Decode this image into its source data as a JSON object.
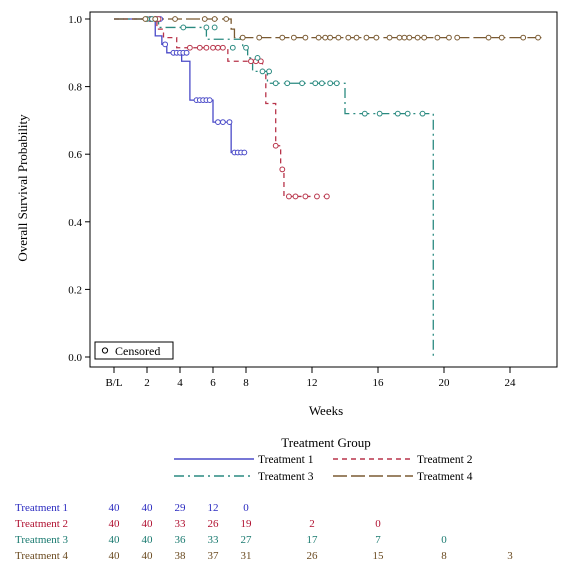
{
  "chart_data": {
    "type": "line",
    "subtype": "kaplan-meier",
    "xlabel": "Weeks",
    "ylabel": "Overall Survival Probability",
    "xlim": [
      -2,
      26
    ],
    "ylim": [
      0,
      1
    ],
    "x_ticks": [
      {
        "value": 0,
        "label": "B/L"
      },
      {
        "value": 2,
        "label": "2"
      },
      {
        "value": 4,
        "label": "4"
      },
      {
        "value": 6,
        "label": "6"
      },
      {
        "value": 8,
        "label": "8"
      },
      {
        "value": 12,
        "label": "12"
      },
      {
        "value": 16,
        "label": "16"
      },
      {
        "value": 20,
        "label": "20"
      },
      {
        "value": 24,
        "label": "24"
      }
    ],
    "y_ticks": [
      "0.0",
      "0.2",
      "0.4",
      "0.6",
      "0.8",
      "1.0"
    ],
    "grid": false,
    "censored_legend": "Censored",
    "legend_title": "Treatment Group",
    "series": [
      {
        "name": "Treatment 1",
        "color": "#4a4ac8",
        "dash": "solid",
        "steps": [
          [
            0,
            1.0
          ],
          [
            2.1,
            1.0
          ],
          [
            2.5,
            0.95
          ],
          [
            2.9,
            0.925
          ],
          [
            3.2,
            0.9
          ],
          [
            4.1,
            0.875
          ],
          [
            4.6,
            0.76
          ],
          [
            6.0,
            0.695
          ],
          [
            7.1,
            0.605
          ],
          [
            7.9,
            0.605
          ]
        ],
        "censored": [
          [
            2.2,
            1.0
          ],
          [
            2.6,
            1.0
          ],
          [
            2.8,
            1.0
          ],
          [
            3.1,
            0.925
          ],
          [
            3.6,
            0.9
          ],
          [
            3.8,
            0.9
          ],
          [
            4.0,
            0.9
          ],
          [
            4.2,
            0.9
          ],
          [
            4.4,
            0.9
          ],
          [
            5.0,
            0.76
          ],
          [
            5.2,
            0.76
          ],
          [
            5.4,
            0.76
          ],
          [
            5.6,
            0.76
          ],
          [
            5.8,
            0.76
          ],
          [
            6.3,
            0.695
          ],
          [
            6.6,
            0.695
          ],
          [
            7.0,
            0.695
          ],
          [
            7.3,
            0.605
          ],
          [
            7.5,
            0.605
          ],
          [
            7.7,
            0.605
          ],
          [
            7.9,
            0.605
          ]
        ]
      },
      {
        "name": "Treatment 2",
        "color": "#b8344a",
        "dash": "5,4",
        "steps": [
          [
            0,
            1.0
          ],
          [
            2.4,
            1.0
          ],
          [
            2.6,
            0.97
          ],
          [
            3.0,
            0.945
          ],
          [
            3.8,
            0.915
          ],
          [
            6.9,
            0.875
          ],
          [
            9.0,
            0.84
          ],
          [
            9.2,
            0.75
          ],
          [
            9.8,
            0.625
          ],
          [
            10.1,
            0.555
          ],
          [
            10.3,
            0.475
          ],
          [
            13.0,
            0.475
          ]
        ],
        "censored": [
          [
            2.2,
            1.0
          ],
          [
            2.5,
            1.0
          ],
          [
            2.7,
            1.0
          ],
          [
            4.6,
            0.915
          ],
          [
            5.2,
            0.915
          ],
          [
            5.6,
            0.915
          ],
          [
            6.0,
            0.915
          ],
          [
            6.3,
            0.915
          ],
          [
            6.6,
            0.915
          ],
          [
            8.3,
            0.875
          ],
          [
            8.6,
            0.875
          ],
          [
            8.9,
            0.875
          ],
          [
            9.8,
            0.625
          ],
          [
            10.2,
            0.555
          ],
          [
            10.6,
            0.475
          ],
          [
            11.0,
            0.475
          ],
          [
            11.6,
            0.475
          ],
          [
            12.3,
            0.475
          ],
          [
            12.9,
            0.475
          ]
        ]
      },
      {
        "name": "Treatment 3",
        "color": "#2a8a80",
        "dash": "10,4,2,4",
        "steps": [
          [
            0,
            1.0
          ],
          [
            2.3,
            1.0
          ],
          [
            2.7,
            0.975
          ],
          [
            5.6,
            0.94
          ],
          [
            7.8,
            0.915
          ],
          [
            8.1,
            0.885
          ],
          [
            8.4,
            0.845
          ],
          [
            9.3,
            0.81
          ],
          [
            14.0,
            0.72
          ],
          [
            19.3,
            0.72
          ],
          [
            19.35,
            0.0
          ],
          [
            19.4,
            0.0
          ]
        ],
        "censored": [
          [
            2.0,
            1.0
          ],
          [
            2.3,
            1.0
          ],
          [
            4.2,
            0.975
          ],
          [
            5.6,
            0.975
          ],
          [
            6.1,
            0.975
          ],
          [
            7.2,
            0.915
          ],
          [
            8.0,
            0.915
          ],
          [
            8.7,
            0.885
          ],
          [
            9.0,
            0.845
          ],
          [
            9.4,
            0.845
          ],
          [
            9.8,
            0.81
          ],
          [
            10.5,
            0.81
          ],
          [
            11.4,
            0.81
          ],
          [
            12.2,
            0.81
          ],
          [
            12.6,
            0.81
          ],
          [
            13.1,
            0.81
          ],
          [
            13.5,
            0.81
          ],
          [
            15.2,
            0.72
          ],
          [
            16.1,
            0.72
          ],
          [
            17.2,
            0.72
          ],
          [
            17.8,
            0.72
          ],
          [
            18.7,
            0.72
          ]
        ]
      },
      {
        "name": "Treatment 4",
        "color": "#7a5a32",
        "dash": "14,4",
        "steps": [
          [
            0,
            1.0
          ],
          [
            6.9,
            1.0
          ],
          [
            7.1,
            0.97
          ],
          [
            7.3,
            0.945
          ],
          [
            26.0,
            0.945
          ]
        ],
        "censored": [
          [
            1.9,
            1.0
          ],
          [
            2.5,
            1.0
          ],
          [
            3.7,
            1.0
          ],
          [
            5.5,
            1.0
          ],
          [
            6.1,
            1.0
          ],
          [
            6.8,
            1.0
          ],
          [
            7.8,
            0.945
          ],
          [
            8.8,
            0.945
          ],
          [
            10.2,
            0.945
          ],
          [
            10.9,
            0.945
          ],
          [
            11.6,
            0.945
          ],
          [
            12.4,
            0.945
          ],
          [
            12.8,
            0.945
          ],
          [
            13.1,
            0.945
          ],
          [
            13.6,
            0.945
          ],
          [
            14.2,
            0.945
          ],
          [
            14.7,
            0.945
          ],
          [
            15.3,
            0.945
          ],
          [
            15.9,
            0.945
          ],
          [
            16.7,
            0.945
          ],
          [
            17.3,
            0.945
          ],
          [
            17.6,
            0.945
          ],
          [
            17.9,
            0.945
          ],
          [
            18.4,
            0.945
          ],
          [
            18.8,
            0.945
          ],
          [
            19.6,
            0.945
          ],
          [
            20.3,
            0.945
          ],
          [
            20.8,
            0.945
          ],
          [
            22.7,
            0.945
          ],
          [
            23.5,
            0.945
          ],
          [
            24.8,
            0.945
          ],
          [
            25.7,
            0.945
          ]
        ]
      }
    ],
    "risk_table": {
      "times": [
        0,
        2,
        4,
        6,
        8,
        12,
        16,
        20,
        24
      ],
      "rows": [
        {
          "label": "Treatment 1",
          "color": "#2a2ac0",
          "counts": [
            "40",
            "40",
            "29",
            "12",
            "0",
            "",
            "",
            "",
            ""
          ]
        },
        {
          "label": "Treatment 2",
          "color": "#b01030",
          "counts": [
            "40",
            "40",
            "33",
            "26",
            "19",
            "2",
            "0",
            "",
            ""
          ]
        },
        {
          "label": "Treatment 3",
          "color": "#1a7a70",
          "counts": [
            "40",
            "40",
            "36",
            "33",
            "27",
            "17",
            "7",
            "0",
            ""
          ]
        },
        {
          "label": "Treatment 4",
          "color": "#6a4a20",
          "counts": [
            "40",
            "40",
            "38",
            "37",
            "31",
            "26",
            "15",
            "8",
            "3"
          ]
        }
      ]
    }
  }
}
